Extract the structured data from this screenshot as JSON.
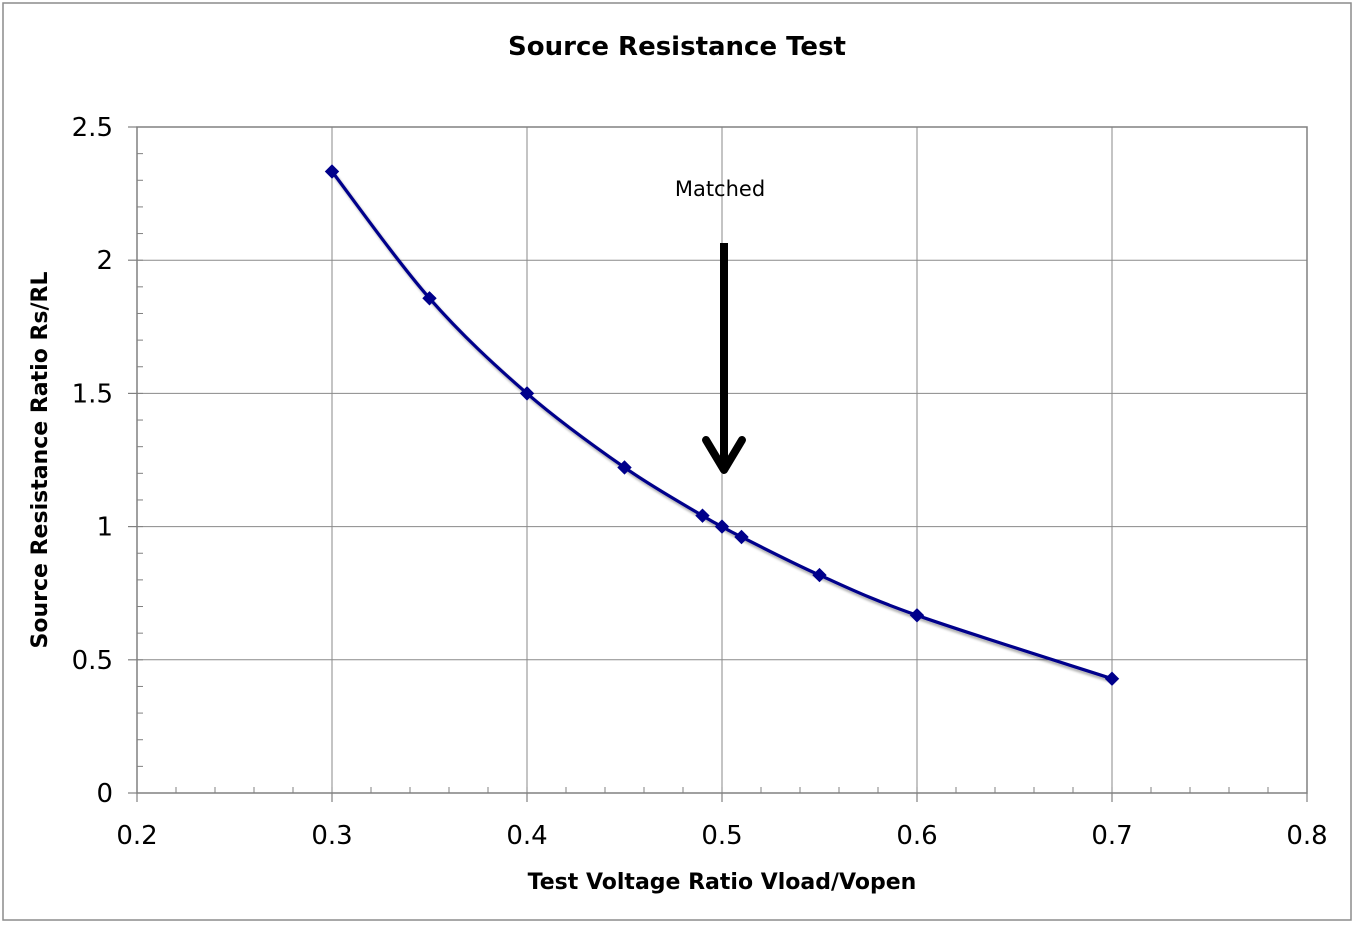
{
  "chart_data": {
    "type": "line",
    "title": "Source Resistance Test",
    "xlabel": "Test Voltage Ratio  Vload/Vopen",
    "ylabel": "Source Resistance Ratio  Rs/RL",
    "xlim": [
      0.2,
      0.8
    ],
    "ylim": [
      0,
      2.5
    ],
    "xticks": [
      "0.2",
      "0.3",
      "0.4",
      "0.5",
      "0.6",
      "0.7",
      "0.8"
    ],
    "yticks": [
      "0",
      "0.5",
      "1",
      "1.5",
      "2",
      "2.5"
    ],
    "grid": true,
    "legend": "none",
    "series": [
      {
        "x": [
          0.3,
          0.35,
          0.4,
          0.45,
          0.49,
          0.5,
          0.51,
          0.55,
          0.6,
          0.7
        ],
        "y": [
          2.333,
          1.857,
          1.5,
          1.222,
          1.041,
          1.0,
          0.961,
          0.818,
          0.667,
          0.429
        ],
        "color": "#00008b",
        "marker": "diamond"
      }
    ],
    "annotations": [
      {
        "text": "Matched",
        "x": 0.5,
        "arrow": "down",
        "arrow_color": "#000000"
      }
    ]
  }
}
